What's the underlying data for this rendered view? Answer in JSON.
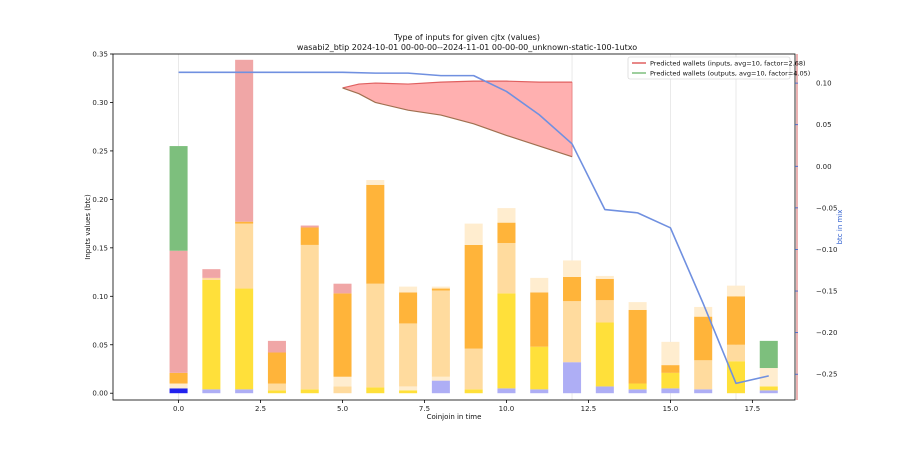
{
  "chart_data": {
    "type": "bar",
    "title": "Type of inputs for given cjtx (values)",
    "subtitle": "wasabi2_btip 2024-10-01 00-00-00--2024-11-01 00-00-00_unknown-static-100-1utxo",
    "xlabel": "Coinjoin in time",
    "ylabel": "Inputs values (btc)",
    "y2label": "btc in mix",
    "xlim": [
      -2,
      18.8
    ],
    "ylim": [
      -0.007,
      0.35
    ],
    "y2lim": [
      -0.281,
      0.135
    ],
    "x_ticks": [
      "0.0",
      "2.5",
      "5.0",
      "7.5",
      "10.0",
      "12.5",
      "15.0",
      "17.5"
    ],
    "x_tick_values": [
      0,
      2.5,
      5,
      7.5,
      10,
      12.5,
      15,
      17.5
    ],
    "y_ticks": [
      "0.00",
      "0.05",
      "0.10",
      "0.15",
      "0.20",
      "0.25",
      "0.30",
      "0.35"
    ],
    "y_tick_values": [
      0,
      0.05,
      0.1,
      0.15,
      0.2,
      0.25,
      0.3,
      0.35
    ],
    "y2_ticks": [
      "0.10",
      "0.05",
      "0.00",
      "−0.05",
      "−0.10",
      "−0.15",
      "−0.20",
      "−0.25"
    ],
    "y2_tick_values": [
      0.1,
      0.05,
      0,
      -0.05,
      -0.1,
      -0.15,
      -0.2,
      -0.25
    ],
    "grid_x": [
      0,
      12,
      15,
      17
    ],
    "bar_width": 0.55,
    "colors": {
      "blue": "#2222ee",
      "lavender": "#aeaef5",
      "yellow": "#ffe03a",
      "light_orange": "#ffdb9e",
      "orange": "#ffb43a",
      "pale": "#ffedcf",
      "pink": "#f0a6a6",
      "green": "#7dbf7d",
      "fill_red": "#ffb0b0",
      "line_red": "#e06060",
      "line_brown": "#a07050",
      "line_blue": "#7090e0",
      "vline_red": "#d04040"
    },
    "bars": [
      {
        "x": 0,
        "segments": [
          [
            0.005,
            "blue"
          ],
          [
            0.005,
            "pale"
          ],
          [
            0.011,
            "orange"
          ],
          [
            0.126,
            "pink"
          ],
          [
            0.108,
            "green"
          ]
        ]
      },
      {
        "x": 1,
        "segments": [
          [
            0.004,
            "lavender"
          ],
          [
            0.113,
            "yellow"
          ],
          [
            0.002,
            "light_orange"
          ],
          [
            0.009,
            "pink"
          ]
        ]
      },
      {
        "x": 2,
        "segments": [
          [
            0.004,
            "lavender"
          ],
          [
            0.104,
            "yellow"
          ],
          [
            0.067,
            "light_orange"
          ],
          [
            0.002,
            "orange"
          ],
          [
            0.167,
            "pink"
          ]
        ]
      },
      {
        "x": 3,
        "segments": [
          [
            0.003,
            "yellow"
          ],
          [
            0.007,
            "light_orange"
          ],
          [
            0.032,
            "orange"
          ],
          [
            0.012,
            "pink"
          ]
        ]
      },
      {
        "x": 4,
        "segments": [
          [
            0.004,
            "yellow"
          ],
          [
            0.149,
            "light_orange"
          ],
          [
            0.018,
            "orange"
          ],
          [
            0.002,
            "pink"
          ]
        ]
      },
      {
        "x": 5,
        "segments": [
          [
            0.007,
            "light_orange"
          ],
          [
            0.01,
            "pale"
          ],
          [
            0.086,
            "orange"
          ],
          [
            0.01,
            "pink"
          ]
        ]
      },
      {
        "x": 6,
        "segments": [
          [
            0.006,
            "yellow"
          ],
          [
            0.107,
            "light_orange"
          ],
          [
            0.102,
            "orange"
          ],
          [
            0.005,
            "pale"
          ]
        ]
      },
      {
        "x": 7,
        "segments": [
          [
            0.003,
            "yellow"
          ],
          [
            0.004,
            "pale"
          ],
          [
            0.065,
            "light_orange"
          ],
          [
            0.032,
            "orange"
          ],
          [
            0.006,
            "pale"
          ]
        ]
      },
      {
        "x": 8,
        "segments": [
          [
            0.013,
            "lavender"
          ],
          [
            0.004,
            "pale"
          ],
          [
            0.089,
            "light_orange"
          ],
          [
            0.002,
            "orange"
          ],
          [
            0.002,
            "pale"
          ]
        ]
      },
      {
        "x": 9,
        "segments": [
          [
            0.004,
            "yellow"
          ],
          [
            0.042,
            "light_orange"
          ],
          [
            0.107,
            "orange"
          ],
          [
            0.022,
            "pale"
          ]
        ]
      },
      {
        "x": 10,
        "segments": [
          [
            0.005,
            "lavender"
          ],
          [
            0.098,
            "yellow"
          ],
          [
            0.052,
            "light_orange"
          ],
          [
            0.021,
            "orange"
          ],
          [
            0.015,
            "pale"
          ]
        ]
      },
      {
        "x": 11,
        "segments": [
          [
            0.004,
            "lavender"
          ],
          [
            0.044,
            "yellow"
          ],
          [
            0.056,
            "orange"
          ],
          [
            0.015,
            "pale"
          ]
        ]
      },
      {
        "x": 12,
        "segments": [
          [
            0.032,
            "lavender"
          ],
          [
            0.063,
            "light_orange"
          ],
          [
            0.025,
            "orange"
          ],
          [
            0.017,
            "pale"
          ]
        ]
      },
      {
        "x": 13,
        "segments": [
          [
            0.007,
            "lavender"
          ],
          [
            0.066,
            "yellow"
          ],
          [
            0.023,
            "light_orange"
          ],
          [
            0.022,
            "orange"
          ],
          [
            0.003,
            "pale"
          ]
        ]
      },
      {
        "x": 14,
        "segments": [
          [
            0.004,
            "lavender"
          ],
          [
            0.006,
            "yellow"
          ],
          [
            0.076,
            "orange"
          ],
          [
            0.008,
            "pale"
          ]
        ]
      },
      {
        "x": 15,
        "segments": [
          [
            0.005,
            "lavender"
          ],
          [
            0.016,
            "yellow"
          ],
          [
            0.008,
            "orange"
          ],
          [
            0.024,
            "pale"
          ]
        ]
      },
      {
        "x": 16,
        "segments": [
          [
            0.004,
            "lavender"
          ],
          [
            0.03,
            "light_orange"
          ],
          [
            0.045,
            "orange"
          ],
          [
            0.01,
            "pale"
          ]
        ]
      },
      {
        "x": 17,
        "segments": [
          [
            0.033,
            "yellow"
          ],
          [
            0.017,
            "light_orange"
          ],
          [
            0.05,
            "orange"
          ],
          [
            0.011,
            "pale"
          ]
        ]
      },
      {
        "x": 18,
        "segments": [
          [
            0.003,
            "lavender"
          ],
          [
            0.004,
            "yellow"
          ],
          [
            0.019,
            "pale"
          ],
          [
            0.028,
            "green"
          ]
        ]
      }
    ],
    "predicted_region": {
      "x": [
        5,
        5.5,
        6,
        7,
        8,
        9,
        10,
        11,
        12
      ],
      "upper": [
        0.315,
        0.319,
        0.32,
        0.319,
        0.321,
        0.322,
        0.322,
        0.321,
        0.321
      ],
      "lower": [
        0.315,
        0.309,
        0.3,
        0.292,
        0.287,
        0.278,
        0.266,
        0.255,
        0.244
      ]
    },
    "btc_in_mix": {
      "x": [
        0,
        1,
        2,
        3,
        4,
        5,
        6,
        7,
        8,
        9,
        10,
        11,
        12,
        13,
        14,
        15,
        16,
        17,
        18
      ],
      "y": [
        0.113,
        0.113,
        0.113,
        0.113,
        0.113,
        0.113,
        0.112,
        0.112,
        0.109,
        0.109,
        0.09,
        0.062,
        0.027,
        -0.052,
        -0.056,
        -0.074,
        -0.165,
        -0.261,
        -0.252
      ]
    },
    "legend": {
      "position": "top-right",
      "entries": [
        {
          "label": "Predicted wallets (inputs, avg=10, factor=2.68)",
          "color": "line_red"
        },
        {
          "label": "Predicted wallets (outputs, avg=10, factor=4.05)",
          "color": "green"
        }
      ]
    }
  }
}
